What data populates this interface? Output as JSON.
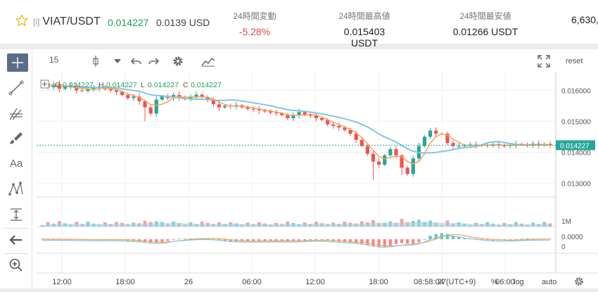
{
  "ticker": {
    "tag": "[i]",
    "symbol": "VIAT/USDT",
    "last_price": "0.014227",
    "usd_price": "0.0139 USD",
    "stats": [
      {
        "label": "24時間変動",
        "value": "-5.28%"
      },
      {
        "label": "24時間最高値",
        "value": "0.015403 USDT"
      },
      {
        "label": "24時間最安値",
        "value": "0.01266 USDT"
      },
      {
        "label": "",
        "value": "6,630,"
      }
    ]
  },
  "toolbar": {
    "interval": "15",
    "reset_label": "reset"
  },
  "legend": {
    "o_label": "O",
    "o_value": "0.014227",
    "h_label": "H",
    "h_value": "0.014227",
    "l_label": "L",
    "l_value": "0.014227",
    "c_label": "C",
    "c_value": "0.014227"
  },
  "price_axis": {
    "ticks": [
      "0.016000",
      "0.015000",
      "0.014000",
      "0.013000"
    ],
    "current_label": "0.014227",
    "volume_tick": "1M",
    "volume_zero": "0",
    "osc_tick": "0.0000"
  },
  "time_axis": {
    "ticks": [
      "12:00",
      "18:00",
      "26",
      "06:00",
      "12:00",
      "18:00",
      "27",
      "06:00"
    ]
  },
  "status_bar": {
    "time": "08:58:04 (UTC+9)",
    "percent": "%",
    "log": "log",
    "auto": "auto"
  },
  "colors": {
    "up": "#26a69a",
    "down": "#ef5350",
    "ma_fast": "#f4a35a",
    "ma_slow": "#7ec8e3",
    "positive": "#1f9e5e",
    "negative": "#e0474c"
  },
  "chart_data": {
    "type": "candlestick",
    "price_range": [
      0.0126,
      0.0166
    ],
    "closes": [
      0.01622,
      0.0161,
      0.0162,
      0.01605,
      0.0161,
      0.01615,
      0.016,
      0.01598,
      0.01605,
      0.01608,
      0.01612,
      0.01604,
      0.016,
      0.01595,
      0.01585,
      0.01575,
      0.0158,
      0.01565,
      0.01545,
      0.01525,
      0.0157,
      0.01582,
      0.01575,
      0.01585,
      0.01578,
      0.01572,
      0.0158,
      0.01586,
      0.01578,
      0.01568,
      0.01555,
      0.01545,
      0.0155,
      0.01548,
      0.01552,
      0.01545,
      0.0154,
      0.01538,
      0.01535,
      0.01532,
      0.01528,
      0.01526,
      0.0152,
      0.0151,
      0.0152,
      0.0153,
      0.01522,
      0.01518,
      0.0151,
      0.01504,
      0.0149,
      0.01485,
      0.0148,
      0.01472,
      0.0146,
      0.0144,
      0.0142,
      0.01395,
      0.0137,
      0.0136,
      0.0139,
      0.0141,
      0.0139,
      0.0135,
      0.0133,
      0.0138,
      0.0142,
      0.0145,
      0.0147,
      0.0146,
      0.0146,
      0.0143,
      0.0142,
      0.0142,
      0.01422,
      0.01425,
      0.01423,
      0.01421,
      0.01424,
      0.01426,
      0.01422,
      0.0142,
      0.01423,
      0.01427,
      0.01425,
      0.01422,
      0.01428,
      0.01423,
      0.01427,
      0.014227
    ]
  }
}
